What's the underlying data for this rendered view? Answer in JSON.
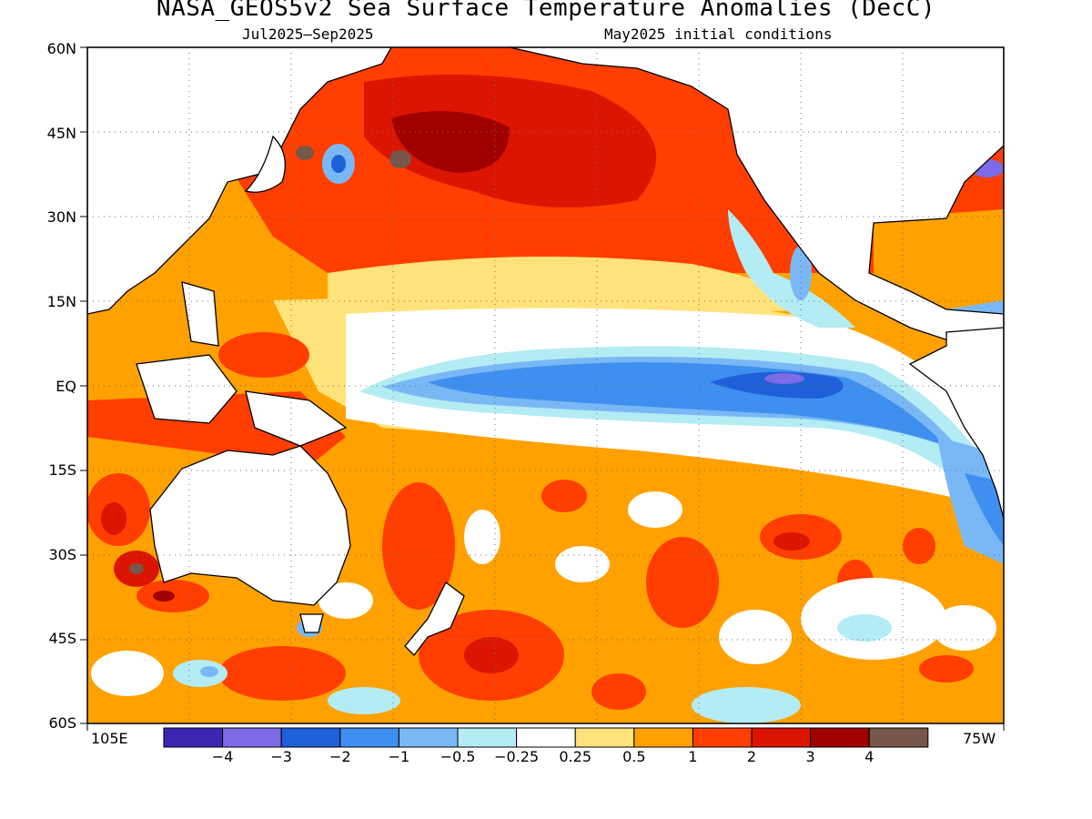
{
  "title": "NASA_GEOS5v2 Sea Surface Temperature Anomalies (DecC)",
  "subtitle_left": "Jul2025–Sep2025",
  "subtitle_right": "May2025 initial conditions",
  "lat_labels": [
    "60N",
    "45N",
    "30N",
    "15N",
    "EQ",
    "15S",
    "30S",
    "45S",
    "60S"
  ],
  "lon_labels": {
    "west_edge": "105E",
    "east_edge": "75W"
  },
  "colorbar": {
    "colors": [
      "#3a26b0",
      "#7c6ae6",
      "#1f5fd8",
      "#3f8ff0",
      "#7ab8f5",
      "#b4ecf4",
      "#ffffff",
      "#ffe27a",
      "#ffa100",
      "#ff3e00",
      "#dc1500",
      "#a10000",
      "#76574a"
    ],
    "tick_labels": [
      "−4",
      "−3",
      "−2",
      "−1",
      "−0.5",
      "−0.25",
      "0.25",
      "0.5",
      "1",
      "2",
      "3",
      "4"
    ]
  },
  "map": {
    "grid_lines": "dotted",
    "coastlines": "black",
    "features": [
      "warm North Pacific (2 to 3+)",
      "cold equatorial tongue (-0.5 to -3)",
      "warm western Pacific and Maritime Continent",
      "mixed warm South Pacific"
    ]
  }
}
